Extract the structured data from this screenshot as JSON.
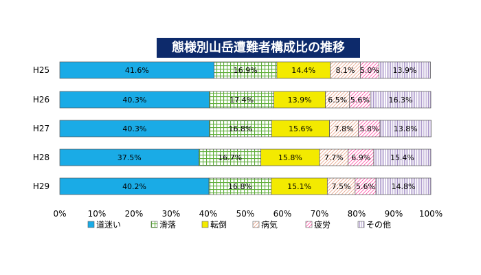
{
  "chart_data": {
    "type": "bar",
    "orientation": "horizontal",
    "stacked": "percent",
    "title": "態様別山岳遭難者構成比の推移",
    "categories": [
      "H25",
      "H26",
      "H27",
      "H28",
      "H29"
    ],
    "series": [
      {
        "name": "道迷い",
        "values": [
          41.6,
          40.3,
          40.3,
          37.5,
          40.2
        ],
        "labels": [
          "41.6%",
          "40.3%",
          "40.3%",
          "37.5%",
          "40.2%"
        ],
        "color": "#1aabe6",
        "pattern": "solid"
      },
      {
        "name": "滑落",
        "values": [
          16.9,
          17.4,
          16.8,
          16.7,
          16.8
        ],
        "labels": [
          "16.9%",
          "17.4%",
          "16.8%",
          "16.7%",
          "16.8%"
        ],
        "color": "#5fae3a",
        "pattern": "grid"
      },
      {
        "name": "転倒",
        "values": [
          14.4,
          13.9,
          15.6,
          15.8,
          15.1
        ],
        "labels": [
          "14.4%",
          "13.9%",
          "15.6%",
          "15.8%",
          "15.1%"
        ],
        "color": "#f3ea00",
        "pattern": "solid"
      },
      {
        "name": "病気",
        "values": [
          8.1,
          6.5,
          7.8,
          7.7,
          7.5
        ],
        "labels": [
          "8.1%",
          "6.5%",
          "7.8%",
          "7.7%",
          "7.5%"
        ],
        "color": "#e9a88e",
        "pattern": "diagonal"
      },
      {
        "name": "疲労",
        "values": [
          5.0,
          5.6,
          5.8,
          6.9,
          5.6
        ],
        "labels": [
          "5.0%",
          "5.6%",
          "5.8%",
          "6.9%",
          "5.6%"
        ],
        "color": "#ff5aaa",
        "pattern": "diagonal"
      },
      {
        "name": "その他",
        "values": [
          13.9,
          16.3,
          13.8,
          15.4,
          14.8
        ],
        "labels": [
          "13.9%",
          "16.3%",
          "13.8%",
          "15.4%",
          "14.8%"
        ],
        "color": "#9f88c4",
        "pattern": "vertical"
      }
    ],
    "x_ticks": [
      "0%",
      "10%",
      "20%",
      "30%",
      "40%",
      "50%",
      "60%",
      "70%",
      "80%",
      "90%",
      "100%"
    ],
    "xlim": [
      0,
      100
    ],
    "grid": false,
    "legend_position": "bottom"
  }
}
